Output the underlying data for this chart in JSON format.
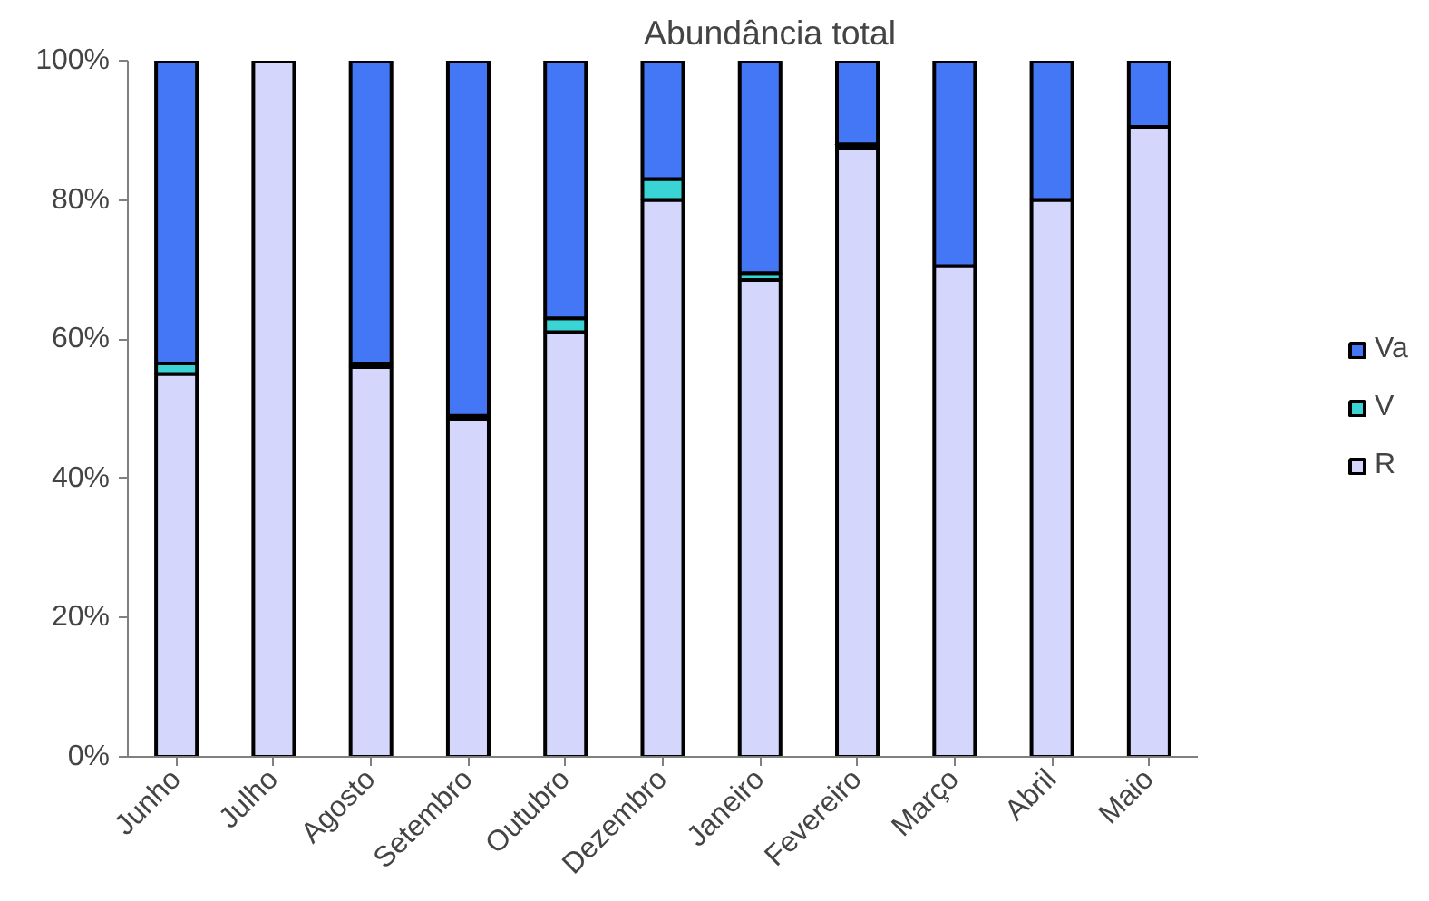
{
  "chart_data": {
    "type": "bar",
    "title": "Abundância total",
    "stacked": true,
    "categories": [
      "Junho",
      "Julho",
      "Agosto",
      "Setembro",
      "Outubro",
      "Dezembro",
      "Janeiro",
      "Fevereiro",
      "Março",
      "Abril",
      "Maio"
    ],
    "series": [
      {
        "name": "R",
        "color": "#d4d6fc",
        "values": [
          55,
          100,
          56,
          48.5,
          61,
          80,
          68.5,
          87.5,
          70.5,
          80,
          90.5
        ]
      },
      {
        "name": "V",
        "color": "#3ad4d4",
        "values": [
          1.5,
          0,
          0.5,
          0.5,
          2,
          3,
          1,
          0.5,
          0,
          0,
          0
        ]
      },
      {
        "name": "Va",
        "color": "#4477f5",
        "values": [
          43.5,
          0,
          43.5,
          51,
          37,
          17,
          30.5,
          12,
          29.5,
          20,
          9.5
        ]
      }
    ],
    "ylim": [
      0,
      100
    ],
    "yticks": [
      {
        "value": 0,
        "label": "0%"
      },
      {
        "value": 20,
        "label": "20%"
      },
      {
        "value": 40,
        "label": "40%"
      },
      {
        "value": 60,
        "label": "60%"
      },
      {
        "value": 80,
        "label": "80%"
      },
      {
        "value": 100,
        "label": "100%"
      }
    ],
    "grid": false,
    "legend": "right"
  }
}
